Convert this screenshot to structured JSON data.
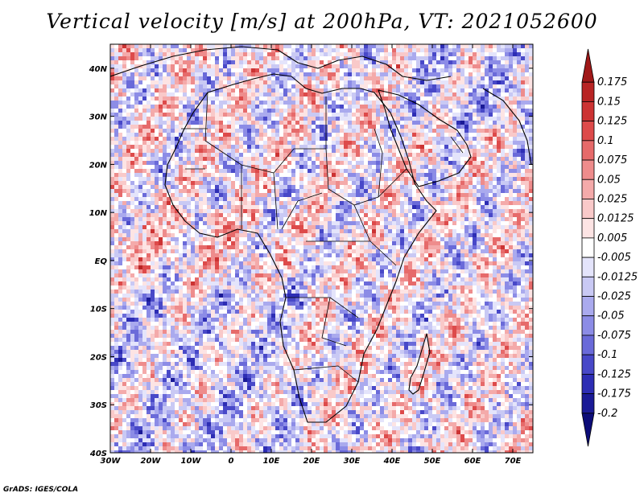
{
  "title": "Vertical velocity [m/s] at 200hPa, VT: 2021052600",
  "credit": "GrADS: IGES/COLA",
  "map": {
    "variable": "Vertical velocity",
    "level": "200hPa",
    "valid_time": "2021052600",
    "lon_range": [
      -30,
      75
    ],
    "lat_range": [
      -40,
      45
    ],
    "lon_ticks": [
      "30W",
      "20W",
      "10W",
      "0",
      "10E",
      "20E",
      "30E",
      "40E",
      "50E",
      "60E",
      "70E"
    ],
    "lat_ticks": [
      "40N",
      "30N",
      "20N",
      "10N",
      "EQ",
      "10S",
      "20S",
      "30S",
      "40S"
    ]
  },
  "colorbar": {
    "labels": [
      "0.175",
      "0.15",
      "0.125",
      "0.1",
      "0.075",
      "0.05",
      "0.025",
      "0.0125",
      "0.005",
      "-0.005",
      "-0.0125",
      "-0.025",
      "-0.05",
      "-0.075",
      "-0.1",
      "-0.125",
      "-0.175",
      "-0.2"
    ],
    "colors": [
      "#a01818",
      "#b82424",
      "#cc3333",
      "#dd4a4a",
      "#e66a6a",
      "#ee8c8c",
      "#f4aaaa",
      "#f9c9c9",
      "#fde4e4",
      "#ffffff",
      "#e4e4fb",
      "#c9c9f4",
      "#aaaaee",
      "#8c8ce6",
      "#6a6ad9",
      "#4848c8",
      "#2d2db4",
      "#1a1a96",
      "#0c0c78"
    ]
  }
}
